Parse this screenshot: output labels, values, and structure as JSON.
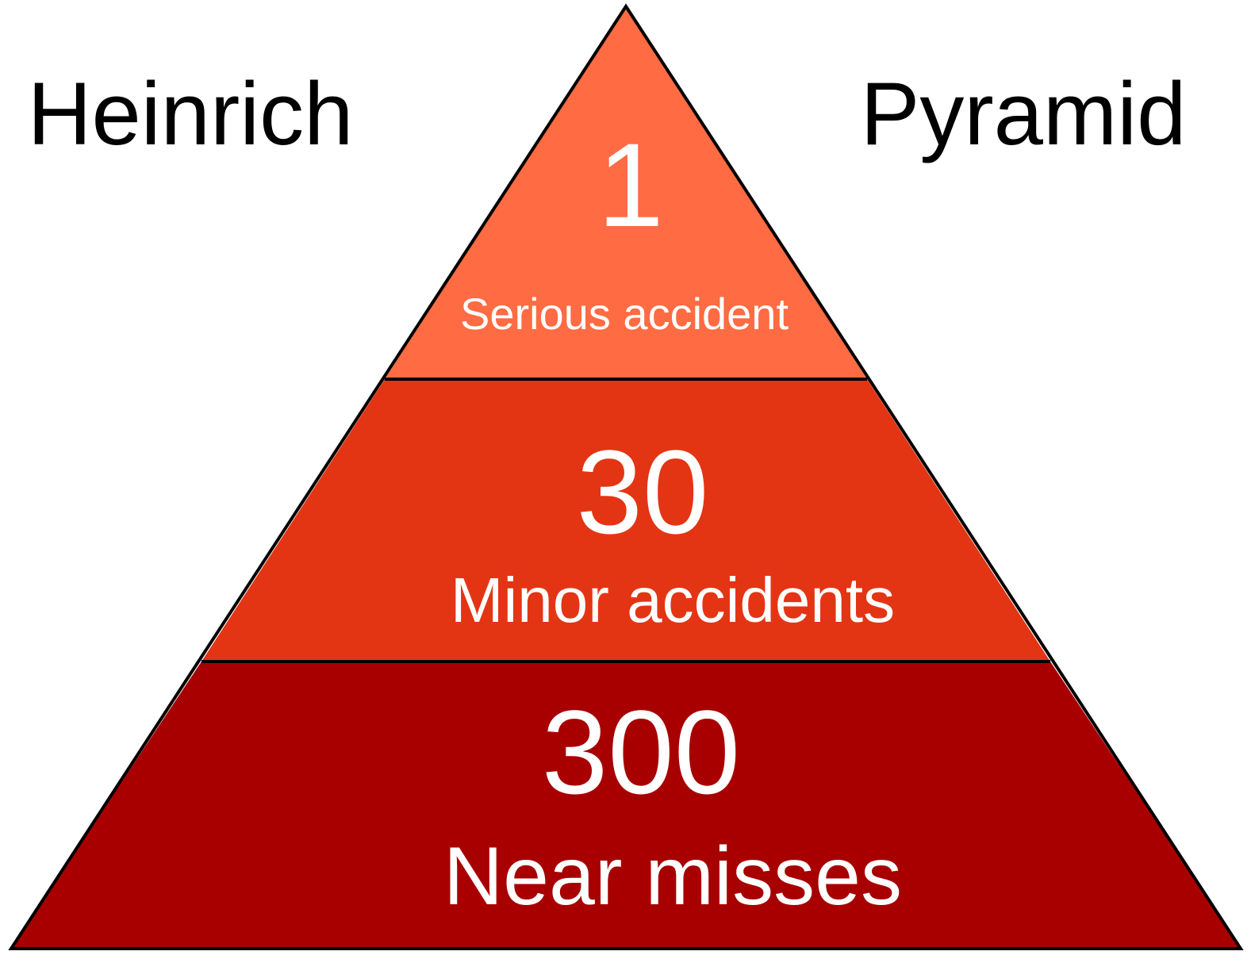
{
  "title": {
    "left_word": "Heinrich",
    "right_word": "Pyramid"
  },
  "tiers": [
    {
      "number": "1",
      "label": "Serious accident",
      "color": "#ff6b42"
    },
    {
      "number": "30",
      "label": "Minor accidents",
      "color": "#e33514"
    },
    {
      "number": "300",
      "label": "Near misses",
      "color": "#a80000"
    }
  ],
  "outline_color": "#000000"
}
